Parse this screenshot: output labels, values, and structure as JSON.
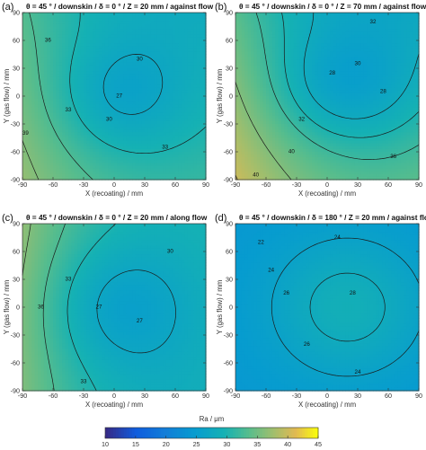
{
  "chart_data": [
    {
      "type": "heatmap",
      "label": "(a)",
      "title": "θ = 45 ° / downskin / δ = 0 ° / Z = 20 mm / against flow",
      "xlabel": "X (recoating) / mm",
      "ylabel": "Y (gas flow) / mm",
      "xlim": [
        -90,
        90
      ],
      "ylim": [
        -90,
        90
      ],
      "xticks": [
        -90,
        -60,
        -30,
        0,
        30,
        60,
        90
      ],
      "yticks": [
        90,
        60,
        30,
        0,
        -30,
        -60,
        -90
      ],
      "field": {
        "base": 31.0,
        "gx": -0.03,
        "gy": -0.02,
        "cx": 5,
        "cy": 0,
        "amp": -4.5,
        "sx": 45,
        "sy": 45,
        "cxx": 0.0002
      },
      "contour_levels": [
        27,
        30,
        33,
        36,
        39
      ],
      "contour_labels": [
        {
          "text": "36",
          "x": -65,
          "y": 60
        },
        {
          "text": "33",
          "x": -45,
          "y": -15
        },
        {
          "text": "30",
          "x": 25,
          "y": 40
        },
        {
          "text": "30",
          "x": -5,
          "y": -25
        },
        {
          "text": "27",
          "x": 5,
          "y": 0
        },
        {
          "text": "33",
          "x": 50,
          "y": -55
        },
        {
          "text": "39",
          "x": -87,
          "y": -40
        }
      ]
    },
    {
      "type": "heatmap",
      "label": "(b)",
      "title": "θ = 45 ° / downskin / δ = 0 ° / Z = 70 mm / against flow",
      "xlabel": "X (recoating) / mm",
      "ylabel": "Y (gas flow) / mm",
      "xlim": [
        -90,
        90
      ],
      "ylim": [
        -90,
        90
      ],
      "xticks": [
        -90,
        -60,
        -30,
        0,
        30,
        60,
        90
      ],
      "yticks": [
        90,
        60,
        30,
        0,
        -30,
        -60,
        -90
      ],
      "field": {
        "base": 31.5,
        "gx": -0.035,
        "gy": -0.035,
        "cx": 15,
        "cy": 10,
        "amp": -5.0,
        "sx": 50,
        "sy": 45,
        "cxx": 0.0003
      },
      "contour_levels": [
        28,
        30,
        32,
        36,
        40
      ],
      "contour_labels": [
        {
          "text": "32",
          "x": 45,
          "y": 80
        },
        {
          "text": "30",
          "x": 30,
          "y": 35
        },
        {
          "text": "28",
          "x": 5,
          "y": 25
        },
        {
          "text": "28",
          "x": 55,
          "y": 5
        },
        {
          "text": "32",
          "x": -25,
          "y": -25
        },
        {
          "text": "36",
          "x": 65,
          "y": -65
        },
        {
          "text": "40",
          "x": -35,
          "y": -60
        },
        {
          "text": "40",
          "x": -70,
          "y": -85
        }
      ]
    },
    {
      "type": "heatmap",
      "label": "(c)",
      "title": "θ = 45 ° / downskin / δ = 0 ° / Z = 20 mm / along flow",
      "xlabel": "X (recoating) / mm",
      "ylabel": "Y (gas flow) / mm",
      "xlim": [
        -90,
        90
      ],
      "ylim": [
        -90,
        90
      ],
      "xticks": [
        -90,
        -60,
        -30,
        0,
        30,
        60,
        90
      ],
      "yticks": [
        90,
        60,
        30,
        0,
        -30,
        -60,
        -90
      ],
      "field": {
        "base": 30.5,
        "gx": -0.04,
        "gy": 0.005,
        "cx": 0,
        "cy": 0,
        "amp": -4.5,
        "sx": 50,
        "sy": 50,
        "cxx": 0.0003
      },
      "contour_levels": [
        27,
        30,
        33,
        36
      ],
      "contour_labels": [
        {
          "text": "30",
          "x": 55,
          "y": 60
        },
        {
          "text": "33",
          "x": -45,
          "y": 30
        },
        {
          "text": "36",
          "x": -72,
          "y": 0
        },
        {
          "text": "27",
          "x": -15,
          "y": 0
        },
        {
          "text": "27",
          "x": 25,
          "y": -15
        },
        {
          "text": "33",
          "x": -30,
          "y": -80
        }
      ]
    },
    {
      "type": "heatmap",
      "label": "(d)",
      "title": "θ = 45 ° / downskin / δ = 180 ° / Z = 20 mm / against flow",
      "xlabel": "X (recoating) / mm",
      "ylabel": "Y (gas flow) / mm",
      "xlim": [
        -90,
        90
      ],
      "ylim": [
        -90,
        90
      ],
      "xticks": [
        -90,
        -60,
        -30,
        0,
        30,
        60,
        90
      ],
      "yticks": [
        90,
        60,
        30,
        0,
        -30,
        -60,
        -90
      ],
      "field": {
        "base": 24.0,
        "gx": 0.0,
        "gy": 0.0,
        "cx": 20,
        "cy": 0,
        "amp": 5.0,
        "sx": 55,
        "sy": 55,
        "cxx": 0.0
      },
      "contour_levels": [
        22,
        24,
        26,
        28
      ],
      "contour_labels": [
        {
          "text": "22",
          "x": -65,
          "y": 70
        },
        {
          "text": "24",
          "x": 10,
          "y": 75
        },
        {
          "text": "24",
          "x": -55,
          "y": 40
        },
        {
          "text": "26",
          "x": -40,
          "y": 15
        },
        {
          "text": "28",
          "x": 25,
          "y": 15
        },
        {
          "text": "26",
          "x": -20,
          "y": -40
        },
        {
          "text": "24",
          "x": 30,
          "y": -70
        }
      ]
    }
  ],
  "colorbar": {
    "title": "Ra / μm",
    "min": 10,
    "max": 45,
    "ticks": [
      10,
      15,
      20,
      25,
      30,
      35,
      40,
      45
    ]
  }
}
